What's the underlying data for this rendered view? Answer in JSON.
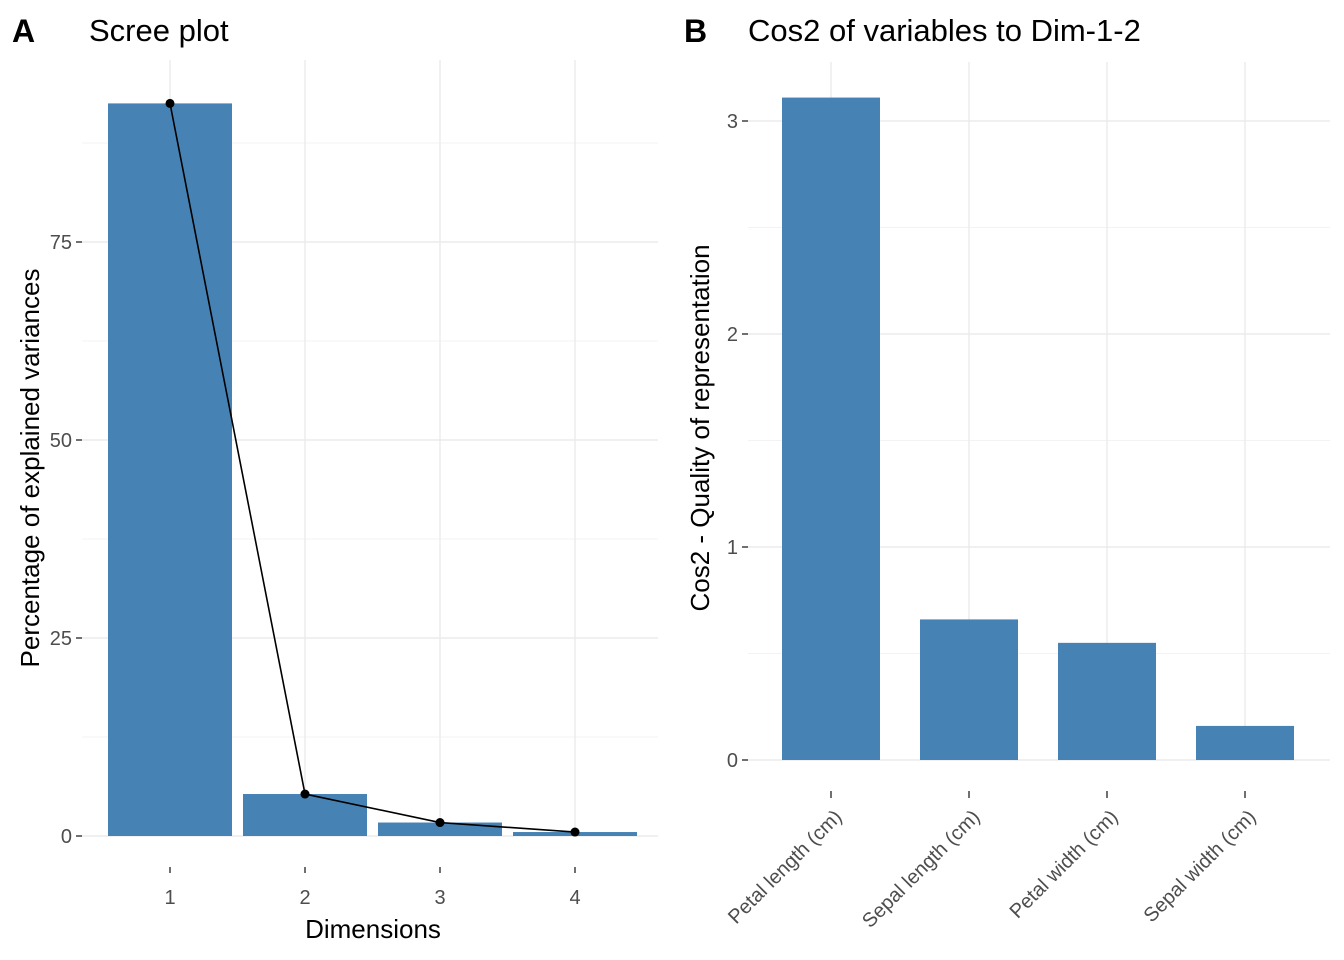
{
  "chart_data": [
    {
      "tag": "A",
      "type": "bar",
      "title": "Scree plot",
      "xlabel": "Dimensions",
      "ylabel": "Percentage of explained variances",
      "categories": [
        "1",
        "2",
        "3",
        "4"
      ],
      "values": [
        92.5,
        5.3,
        1.7,
        0.5
      ],
      "overlay_line": true,
      "ylim": [
        0,
        95
      ],
      "yticks": [
        0,
        25,
        50,
        75
      ],
      "grid": true,
      "bar_color": "#4682B4",
      "line_color": "#000000"
    },
    {
      "tag": "B",
      "type": "bar",
      "title": "Cos2 of variables to Dim-1-2",
      "xlabel": "",
      "ylabel": "Cos2 - Quality of representation",
      "categories": [
        "Petal length (cm)",
        "Sepal length (cm)",
        "Petal width (cm)",
        "Sepal width (cm)"
      ],
      "values": [
        3.11,
        0.66,
        0.55,
        0.16
      ],
      "ylim": [
        0,
        3.11
      ],
      "yticks": [
        0,
        1,
        2,
        3
      ],
      "grid": true,
      "bar_color": "#4682B4"
    }
  ]
}
